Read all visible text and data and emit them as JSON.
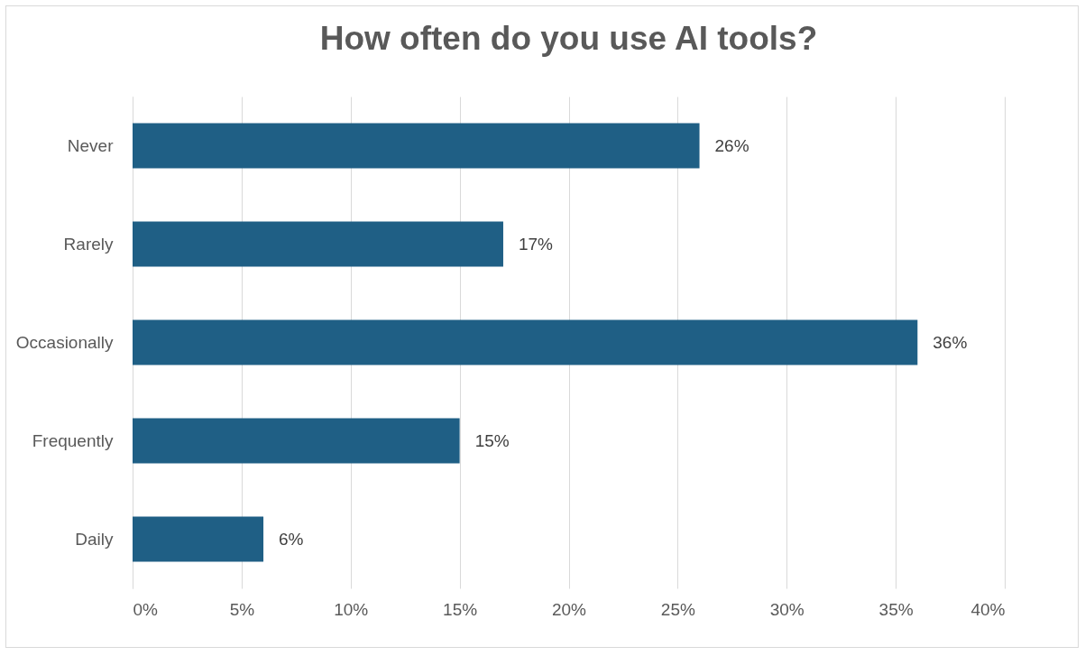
{
  "chart_data": {
    "type": "bar",
    "orientation": "horizontal",
    "title": "How often do you use AI tools?",
    "categories": [
      "Never",
      "Rarely",
      "Occasionally",
      "Frequently",
      "Daily"
    ],
    "values": [
      26,
      17,
      36,
      15,
      6
    ],
    "value_labels": [
      "26%",
      "17%",
      "36%",
      "15%",
      "6%"
    ],
    "color": "#1f5f85",
    "xlim": [
      0,
      40
    ],
    "xticks": [
      {
        "value": 0,
        "label": "0%"
      },
      {
        "value": 5,
        "label": "5%"
      },
      {
        "value": 10,
        "label": "10%"
      },
      {
        "value": 15,
        "label": "15%"
      },
      {
        "value": 20,
        "label": "20%"
      },
      {
        "value": 25,
        "label": "25%"
      },
      {
        "value": 30,
        "label": "30%"
      },
      {
        "value": 35,
        "label": "35%"
      },
      {
        "value": 40,
        "label": "40%"
      }
    ],
    "grid": "x"
  }
}
